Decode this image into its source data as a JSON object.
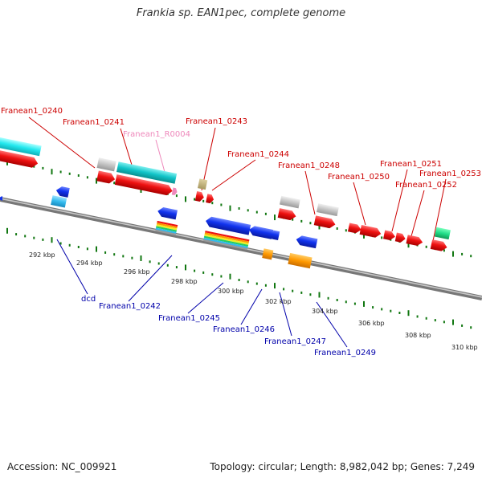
{
  "title": "Frankia sp. EAN1pec, complete genome",
  "footer": {
    "accession": "Accession: NC_009921",
    "summary": "Topology: circular; Length: 8,982,042 bp; Genes: 7,249"
  },
  "colors": {
    "forward_cds": "#ee1111",
    "reverse_cds": "#1133ee",
    "top_label": "#cc0000",
    "bottom_label": "#0000aa",
    "rna_label": "#ee88bb",
    "tick": "#117711",
    "backbone": "#888888"
  },
  "top_labels": [
    "Franean1_0240",
    "Franean1_0241",
    "Franean1_R0004",
    "Franean1_0243",
    "Franean1_0244",
    "Franean1_0248",
    "Franean1_0250",
    "Franean1_0251",
    "Franean1_0252",
    "Franean1_0253"
  ],
  "bottom_labels": [
    "dcd",
    "Franean1_0242",
    "Franean1_0245",
    "Franean1_0246",
    "Franean1_0247",
    "Franean1_0249"
  ],
  "scale_labels": [
    "292 kbp",
    "294 kbp",
    "296 kbp",
    "298 kbp",
    "300 kbp",
    "302 kbp",
    "304 kbp",
    "306 kbp",
    "308 kbp",
    "310 kbp"
  ]
}
